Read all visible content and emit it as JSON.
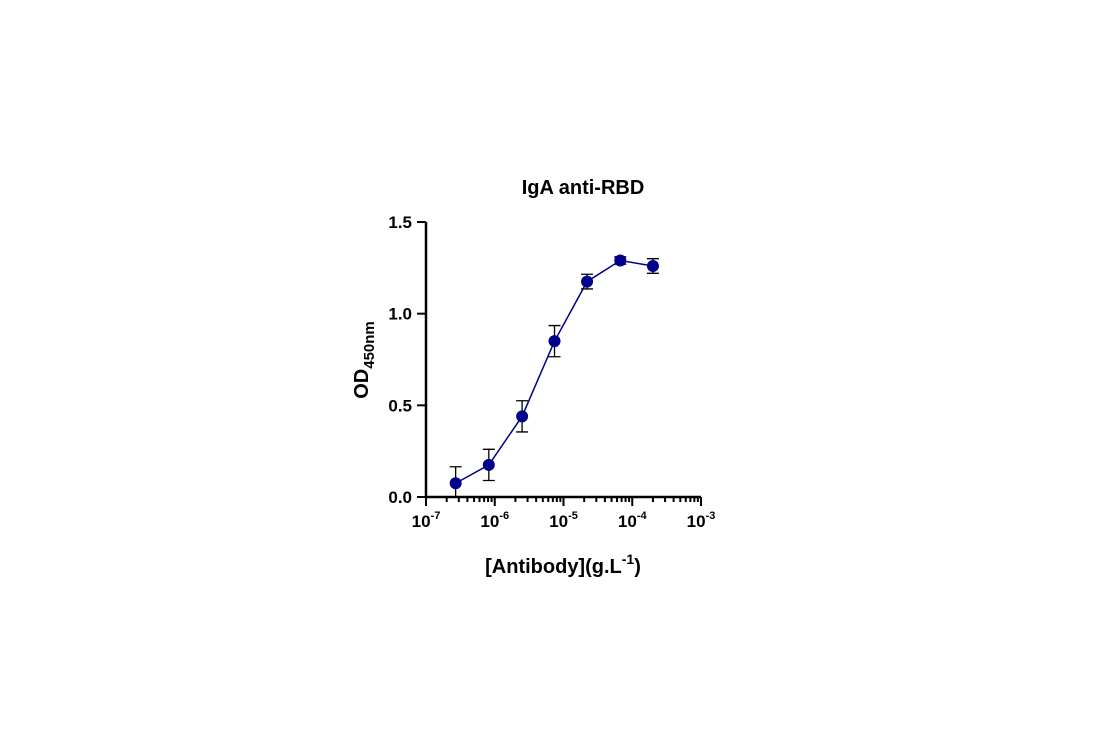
{
  "chart_data": {
    "type": "scatter",
    "title": "IgA anti-RBD",
    "xlabel": {
      "main": "[Antibody](g.L",
      "sup": "-1",
      "tail": ")"
    },
    "ylabel": {
      "main": "OD",
      "sub": "450nm"
    },
    "x_scale": "log",
    "xlim": [
      1e-07,
      0.001
    ],
    "ylim": [
      0.0,
      1.5
    ],
    "x_ticks": [
      {
        "value": 1e-07,
        "base": "10",
        "exp": "-7"
      },
      {
        "value": 1e-06,
        "base": "10",
        "exp": "-6"
      },
      {
        "value": 1e-05,
        "base": "10",
        "exp": "-5"
      },
      {
        "value": 0.0001,
        "base": "10",
        "exp": "-4"
      },
      {
        "value": 0.001,
        "base": "10",
        "exp": "-3"
      }
    ],
    "y_ticks": [
      {
        "value": 0.0,
        "label": "0.0"
      },
      {
        "value": 0.5,
        "label": "0.5"
      },
      {
        "value": 1.0,
        "label": "1.0"
      },
      {
        "value": 1.5,
        "label": "1.5"
      }
    ],
    "grid": false,
    "legend": "none",
    "series": [
      {
        "color": "#00008B",
        "x": [
          2.7e-07,
          8.2e-07,
          2.5e-06,
          7.4e-06,
          2.2e-05,
          6.7e-05,
          0.0002
        ],
        "y": [
          0.075,
          0.175,
          0.44,
          0.85,
          1.175,
          1.29,
          1.26
        ],
        "err": [
          0.09,
          0.085,
          0.085,
          0.085,
          0.04,
          0.02,
          0.04
        ]
      }
    ]
  }
}
